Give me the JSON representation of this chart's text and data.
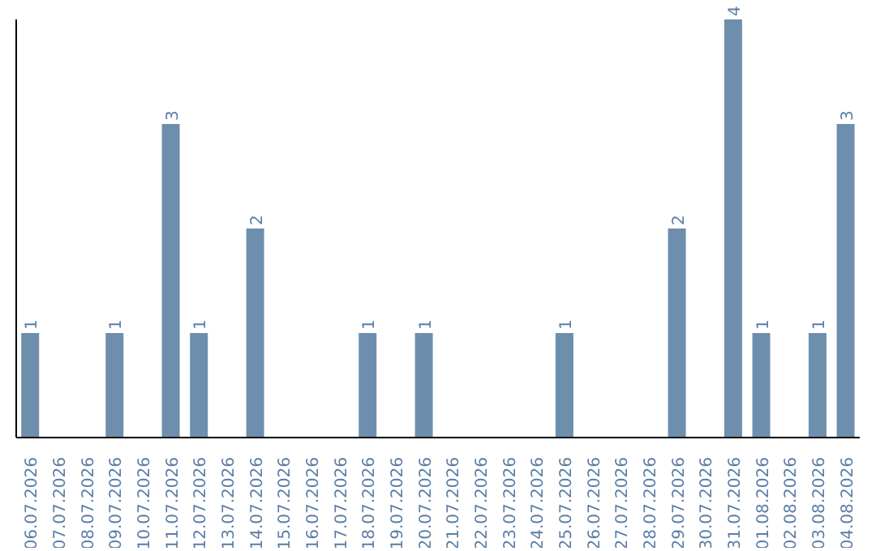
{
  "chart_data": {
    "type": "bar",
    "categories": [
      "06.07.2026",
      "07.07.2026",
      "08.07.2026",
      "09.07.2026",
      "10.07.2026",
      "11.07.2026",
      "12.07.2026",
      "13.07.2026",
      "14.07.2026",
      "15.07.2026",
      "16.07.2026",
      "17.07.2026",
      "18.07.2026",
      "19.07.2026",
      "20.07.2026",
      "21.07.2026",
      "22.07.2026",
      "23.07.2026",
      "24.07.2026",
      "25.07.2026",
      "26.07.2026",
      "27.07.2026",
      "28.07.2026",
      "29.07.2026",
      "30.07.2026",
      "31.07.2026",
      "01.08.2026",
      "02.08.2026",
      "03.08.2026",
      "04.08.2026"
    ],
    "values": [
      1,
      0,
      0,
      1,
      0,
      3,
      1,
      0,
      2,
      0,
      0,
      0,
      1,
      0,
      1,
      0,
      0,
      0,
      0,
      1,
      0,
      0,
      0,
      2,
      0,
      4,
      1,
      0,
      1,
      3
    ],
    "value_labels": [
      "1",
      null,
      null,
      "1",
      null,
      "3",
      "1",
      null,
      "2",
      null,
      null,
      null,
      "1",
      null,
      "1",
      null,
      null,
      null,
      null,
      "1",
      null,
      null,
      null,
      "2",
      null,
      "4",
      "1",
      null,
      "1",
      "3"
    ],
    "color": "#6d8fad",
    "tick_labels": "x",
    "grid": false,
    "legend": false
  }
}
